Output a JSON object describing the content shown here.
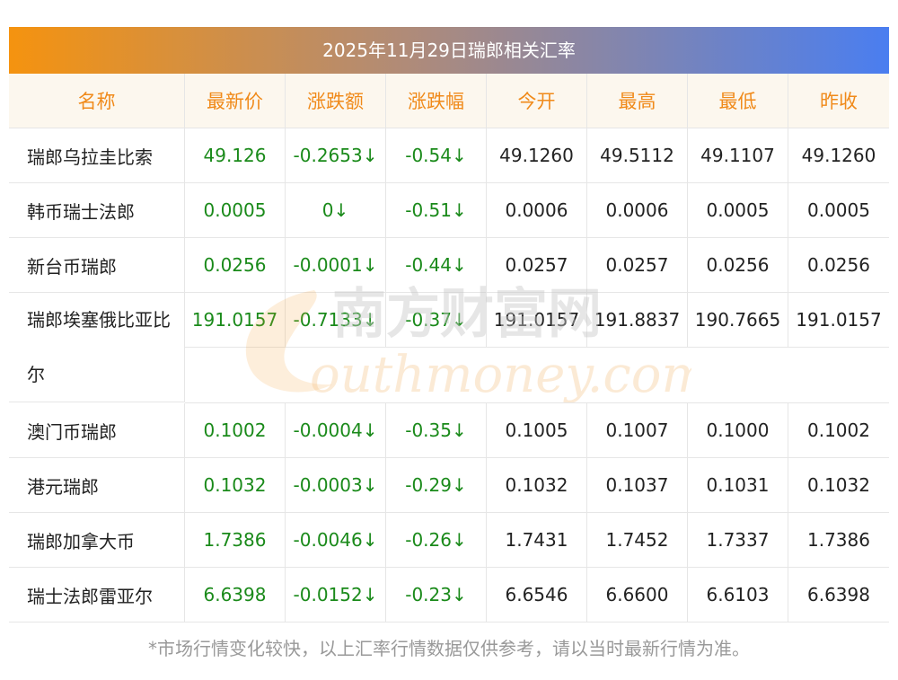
{
  "title": "2025年11月29日瑞郎相关汇率",
  "headers": [
    "名称",
    "最新价",
    "涨跌额",
    "涨跌幅",
    "今开",
    "最高",
    "最低",
    "昨收"
  ],
  "rows": [
    [
      "瑞郎乌拉圭比索",
      "49.126",
      "-0.2653↓",
      "-0.54↓",
      "49.1260",
      "49.5112",
      "49.1107",
      "49.1260"
    ],
    [
      "韩币瑞士法郎",
      "0.0005",
      "0↓",
      "-0.51↓",
      "0.0006",
      "0.0006",
      "0.0005",
      "0.0005"
    ],
    [
      "新台币瑞郎",
      "0.0256",
      "-0.0001↓",
      "-0.44↓",
      "0.0257",
      "0.0257",
      "0.0256",
      "0.0256"
    ],
    [
      "瑞郎埃塞俄比亚比尔",
      "191.0157",
      "-0.7133↓",
      "-0.37↓",
      "191.0157",
      "191.8837",
      "190.7665",
      "191.0157"
    ],
    [
      "澳门币瑞郎",
      "0.1002",
      "-0.0004↓",
      "-0.35↓",
      "0.1005",
      "0.1007",
      "0.1000",
      "0.1002"
    ],
    [
      "港元瑞郎",
      "0.1032",
      "-0.0003↓",
      "-0.29↓",
      "0.1032",
      "0.1037",
      "0.1031",
      "0.1032"
    ],
    [
      "瑞郎加拿大币",
      "1.7386",
      "-0.0046↓",
      "-0.26↓",
      "1.7431",
      "1.7452",
      "1.7337",
      "1.7386"
    ],
    [
      "瑞士法郎雷亚尔",
      "6.6398",
      "-0.0152↓",
      "-0.23↓",
      "6.6546",
      "6.6600",
      "6.6103",
      "6.6398"
    ]
  ],
  "watermark": {
    "cn": "南方财富网",
    "en": "outhmoney.com"
  },
  "footer": "*市场行情变化较快，以上汇率行情数据仅供参考，请以当时最新行情为准。",
  "colors": {
    "header_text": "#f08a1a",
    "green": "#1a8a1a",
    "title_from": "#f5930f",
    "title_to": "#4a7ef0"
  }
}
